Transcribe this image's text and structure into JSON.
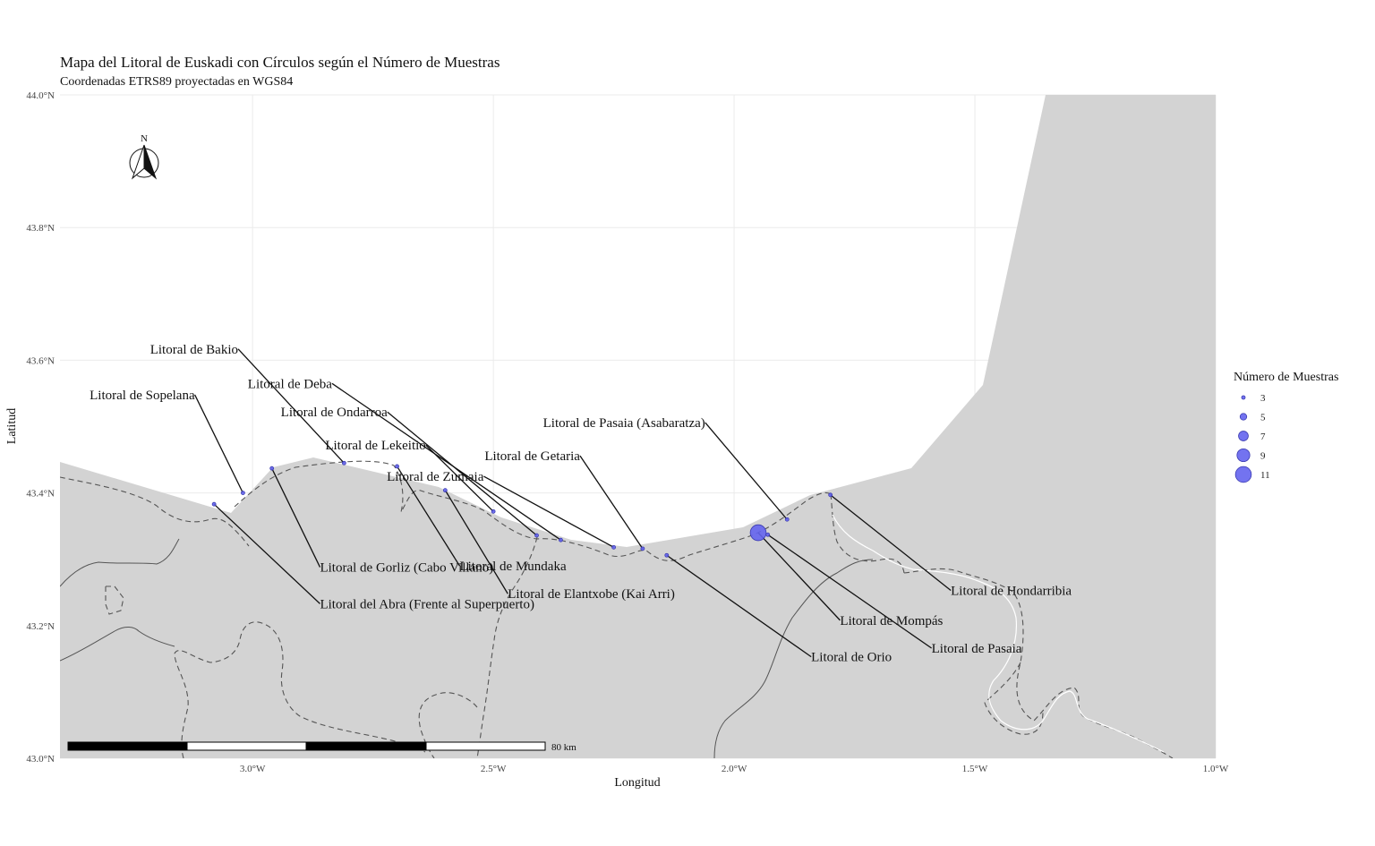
{
  "title": "Mapa del Litoral de Euskadi con Círculos según el Número de Muestras",
  "subtitle": "Coordenadas ETRS89 proyectadas en WGS84",
  "axes": {
    "xlabel": "Longitud",
    "ylabel": "Latitud",
    "xlim": [
      -3.4,
      -1.0
    ],
    "ylim": [
      43.0,
      44.0
    ],
    "x_ticks": [
      {
        "value": -3.0,
        "label": "3.0°W"
      },
      {
        "value": -2.5,
        "label": "2.5°W"
      },
      {
        "value": -2.0,
        "label": "2.0°W"
      },
      {
        "value": -1.5,
        "label": "1.5°W"
      },
      {
        "value": -1.0,
        "label": "1.0°W"
      }
    ],
    "y_ticks": [
      {
        "value": 43.0,
        "label": "43.0°N"
      },
      {
        "value": 43.2,
        "label": "43.2°N"
      },
      {
        "value": 43.4,
        "label": "43.4°N"
      },
      {
        "value": 43.6,
        "label": "43.6°N"
      },
      {
        "value": 43.8,
        "label": "43.8°N"
      },
      {
        "value": 44.0,
        "label": "44.0°N"
      }
    ]
  },
  "north_arrow": {
    "label": "N"
  },
  "scale_bar": {
    "label": "80 km"
  },
  "legend": {
    "title": "Número de Muestras",
    "entries": [
      3,
      5,
      7,
      9,
      11
    ]
  },
  "colors": {
    "land": "#d3d3d3",
    "point_fill": "#6464ee",
    "point_stroke": "#3b3bb0",
    "grid": "#ebebeb",
    "boundary": "#555555"
  },
  "chart_data": {
    "type": "scatter",
    "title": "Mapa del Litoral de Euskadi con Círculos según el Número de Muestras",
    "subtitle": "Coordenadas ETRS89 proyectadas en WGS84",
    "xlabel": "Longitud",
    "ylabel": "Latitud",
    "xlim": [
      -3.4,
      -1.0
    ],
    "ylim": [
      43.0,
      44.0
    ],
    "size_variable": "Número de Muestras",
    "points": [
      {
        "name": "Litoral de Sopelana",
        "lon": -3.02,
        "lat": 43.4,
        "n": 3,
        "label_lon": -3.12,
        "label_lat": 43.548
      },
      {
        "name": "Litoral del Abra (Frente al Superpuerto)",
        "lon": -3.08,
        "lat": 43.383,
        "n": 3,
        "label_lon": -2.86,
        "label_lat": 43.233
      },
      {
        "name": "Litoral de Gorliz (Cabo Villano)",
        "lon": -2.96,
        "lat": 43.437,
        "n": 3,
        "label_lon": -2.86,
        "label_lat": 43.288
      },
      {
        "name": "Litoral de Bakio",
        "lon": -2.81,
        "lat": 43.445,
        "n": 3,
        "label_lon": -3.03,
        "label_lat": 43.617
      },
      {
        "name": "Litoral de Deba",
        "lon": -2.36,
        "lat": 43.329,
        "n": 3,
        "label_lon": -2.835,
        "label_lat": 43.565
      },
      {
        "name": "Litoral de Ondarroa",
        "lon": -2.41,
        "lat": 43.336,
        "n": 3,
        "label_lon": -2.72,
        "label_lat": 43.522
      },
      {
        "name": "Litoral de Lekeitio",
        "lon": -2.5,
        "lat": 43.372,
        "n": 3,
        "label_lon": -2.64,
        "label_lat": 43.472
      },
      {
        "name": "Litoral de Mundaka",
        "lon": -2.7,
        "lat": 43.44,
        "n": 3,
        "label_lon": -2.57,
        "label_lat": 43.29
      },
      {
        "name": "Litoral de Elantxobe (Kai Arri)",
        "lon": -2.6,
        "lat": 43.404,
        "n": 3,
        "label_lon": -2.47,
        "label_lat": 43.248
      },
      {
        "name": "Litoral de Zumaia",
        "lon": -2.25,
        "lat": 43.318,
        "n": 3,
        "label_lon": -2.52,
        "label_lat": 43.425
      },
      {
        "name": "Litoral de Getaria",
        "lon": -2.19,
        "lat": 43.316,
        "n": 3,
        "label_lon": -2.32,
        "label_lat": 43.456
      },
      {
        "name": "Litoral de Orio",
        "lon": -2.14,
        "lat": 43.306,
        "n": 3,
        "label_lon": -1.84,
        "label_lat": 43.153
      },
      {
        "name": "Litoral de Mompás",
        "lon": -1.95,
        "lat": 43.34,
        "n": 11,
        "label_lon": -1.78,
        "label_lat": 43.208
      },
      {
        "name": "Litoral de Pasaia",
        "lon": -1.93,
        "lat": 43.337,
        "n": 3,
        "label_lon": -1.59,
        "label_lat": 43.166
      },
      {
        "name": "Litoral de Pasaia (Asabaratza)",
        "lon": -1.89,
        "lat": 43.36,
        "n": 3,
        "label_lon": -2.06,
        "label_lat": 43.506
      },
      {
        "name": "Litoral de Hondarribia",
        "lon": -1.8,
        "lat": 43.397,
        "n": 3,
        "label_lon": -1.55,
        "label_lat": 43.253
      }
    ]
  }
}
